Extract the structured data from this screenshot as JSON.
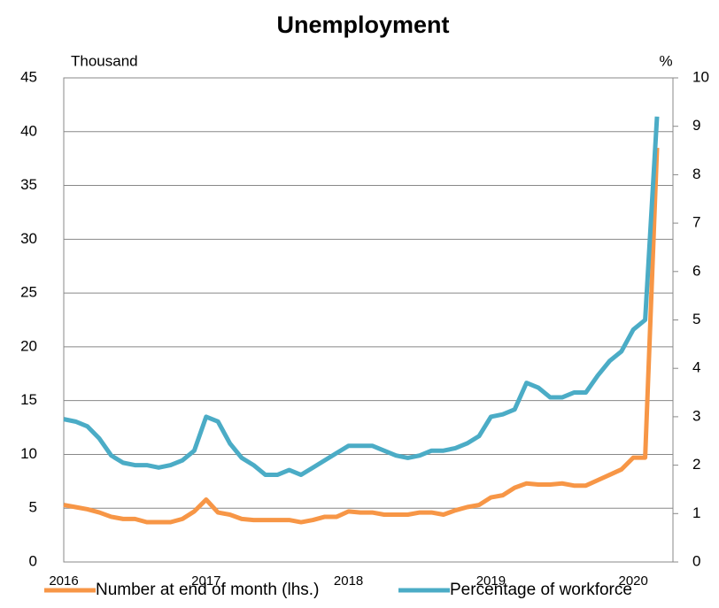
{
  "chart_data": {
    "type": "line",
    "title": "Unemployment",
    "y_label": "Thousand",
    "y2_label": "%",
    "categories": [
      "2016",
      null,
      null,
      null,
      null,
      null,
      null,
      null,
      null,
      null,
      null,
      null,
      "2017",
      null,
      null,
      null,
      null,
      null,
      null,
      null,
      null,
      null,
      null,
      null,
      "2018",
      null,
      null,
      null,
      null,
      null,
      null,
      null,
      null,
      null,
      null,
      null,
      "2019",
      null,
      null,
      null,
      null,
      null,
      null,
      null,
      null,
      null,
      null,
      null,
      "2020",
      null,
      null
    ],
    "series": [
      {
        "name": "Number at end of month (lhs.)",
        "color": "#f79646",
        "values": [
          5.3,
          5.1,
          4.9,
          4.6,
          4.2,
          4.0,
          4.0,
          3.7,
          3.7,
          3.7,
          4.0,
          4.7,
          5.8,
          4.6,
          4.4,
          4.0,
          3.9,
          3.9,
          3.9,
          3.9,
          3.7,
          3.9,
          4.2,
          4.2,
          4.7,
          4.6,
          4.6,
          4.4,
          4.4,
          4.4,
          4.6,
          4.6,
          4.4,
          4.8,
          5.1,
          5.3,
          6.0,
          6.2,
          6.9,
          7.3,
          7.2,
          7.2,
          7.3,
          7.1,
          7.1,
          7.6,
          8.1,
          8.6,
          9.7,
          9.7,
          38.5
        ]
      },
      {
        "name": "Percentage of workforce",
        "color": "#4bacc6",
        "axis": "y2",
        "values": [
          2.95,
          2.9,
          2.8,
          2.55,
          2.2,
          2.05,
          2.0,
          2.0,
          1.95,
          2.0,
          2.1,
          2.3,
          3.0,
          2.9,
          2.45,
          2.15,
          2.0,
          1.8,
          1.8,
          1.9,
          1.8,
          1.95,
          2.1,
          2.25,
          2.4,
          2.4,
          2.4,
          2.3,
          2.2,
          2.15,
          2.2,
          2.3,
          2.3,
          2.35,
          2.45,
          2.6,
          3.0,
          3.05,
          3.15,
          3.7,
          3.6,
          3.4,
          3.4,
          3.5,
          3.5,
          3.85,
          4.15,
          4.35,
          4.8,
          5.0,
          9.2
        ]
      }
    ],
    "ylim": [
      0,
      45
    ],
    "yticks": [
      0,
      5,
      10,
      15,
      20,
      25,
      30,
      35,
      40,
      45
    ],
    "y2lim": [
      0,
      10
    ],
    "y2ticks": [
      0,
      1,
      2,
      3,
      4,
      5,
      6,
      7,
      8,
      9,
      10
    ],
    "grid": true
  }
}
